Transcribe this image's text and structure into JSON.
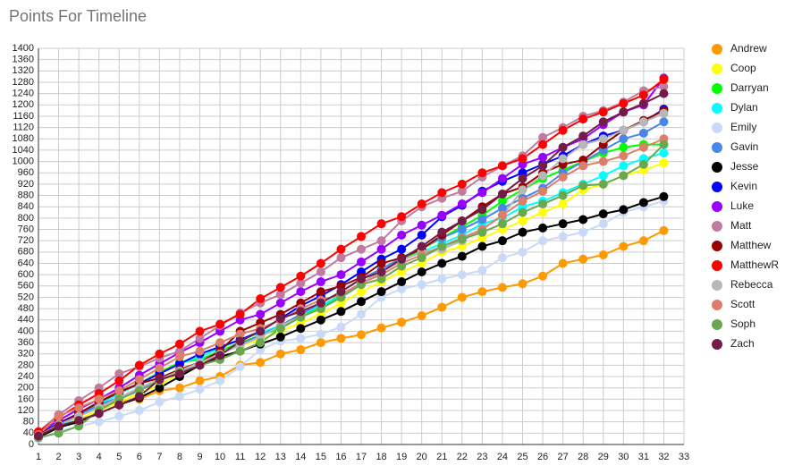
{
  "chart_data": {
    "type": "line",
    "title": "Points For Timeline",
    "x": [
      1,
      2,
      3,
      4,
      5,
      6,
      7,
      8,
      9,
      10,
      11,
      12,
      13,
      14,
      15,
      16,
      17,
      18,
      19,
      20,
      21,
      22,
      23,
      24,
      25,
      26,
      27,
      28,
      29,
      30,
      31,
      32
    ],
    "xlim": [
      1,
      33
    ],
    "xticks": [
      1,
      2,
      3,
      4,
      5,
      6,
      7,
      8,
      9,
      10,
      11,
      12,
      13,
      14,
      15,
      16,
      17,
      18,
      19,
      20,
      21,
      22,
      23,
      24,
      25,
      26,
      27,
      28,
      29,
      30,
      31,
      32,
      33
    ],
    "ylim": [
      0,
      1400
    ],
    "yticks": [
      0,
      40,
      80,
      120,
      160,
      200,
      240,
      280,
      320,
      360,
      400,
      440,
      480,
      520,
      560,
      600,
      640,
      680,
      720,
      760,
      800,
      840,
      880,
      920,
      960,
      1000,
      1040,
      1080,
      1120,
      1160,
      1200,
      1240,
      1280,
      1320,
      1360,
      1400
    ],
    "grid": true,
    "legend": "right",
    "series": [
      {
        "name": "Andrew",
        "color": "#ff9900",
        "values": [
          25,
          70,
          100,
          130,
          150,
          160,
          190,
          200,
          225,
          240,
          280,
          290,
          320,
          335,
          360,
          375,
          388,
          412,
          432,
          455,
          485,
          520,
          540,
          555,
          568,
          595,
          640,
          655,
          670,
          700,
          720,
          756
        ]
      },
      {
        "name": "Coop",
        "color": "#ffff00",
        "values": [
          30,
          60,
          90,
          120,
          150,
          180,
          210,
          250,
          280,
          320,
          350,
          370,
          400,
          430,
          460,
          500,
          540,
          575,
          610,
          640,
          680,
          700,
          730,
          760,
          790,
          820,
          850,
          900,
          920,
          950,
          970,
          995
        ]
      },
      {
        "name": "Darryan",
        "color": "#00ff00",
        "values": [
          35,
          70,
          110,
          145,
          180,
          215,
          255,
          290,
          300,
          330,
          360,
          385,
          410,
          450,
          490,
          520,
          570,
          610,
          650,
          690,
          730,
          770,
          810,
          860,
          900,
          940,
          970,
          1000,
          1030,
          1050,
          1060,
          1060
        ]
      },
      {
        "name": "Dylan",
        "color": "#00ffff",
        "values": [
          30,
          65,
          100,
          140,
          180,
          215,
          250,
          285,
          310,
          340,
          370,
          395,
          420,
          460,
          490,
          530,
          570,
          610,
          650,
          680,
          710,
          740,
          780,
          800,
          840,
          860,
          890,
          920,
          950,
          985,
          1010,
          1030
        ]
      },
      {
        "name": "Emily",
        "color": "#c9daf8",
        "values": [
          20,
          45,
          65,
          80,
          100,
          120,
          150,
          170,
          195,
          225,
          275,
          335,
          365,
          375,
          390,
          415,
          460,
          520,
          550,
          565,
          585,
          600,
          615,
          660,
          680,
          720,
          735,
          750,
          780,
          820,
          840,
          860
        ]
      },
      {
        "name": "Gavin",
        "color": "#4a86e8",
        "values": [
          35,
          70,
          105,
          140,
          165,
          195,
          230,
          260,
          290,
          320,
          355,
          385,
          420,
          460,
          500,
          540,
          585,
          620,
          660,
          695,
          730,
          760,
          795,
          835,
          870,
          905,
          960,
          1000,
          1040,
          1080,
          1100,
          1140
        ]
      },
      {
        "name": "Jesse",
        "color": "#000000",
        "values": [
          25,
          60,
          80,
          110,
          140,
          165,
          200,
          240,
          280,
          310,
          330,
          355,
          380,
          410,
          440,
          470,
          505,
          540,
          575,
          610,
          640,
          665,
          700,
          720,
          750,
          765,
          780,
          795,
          815,
          830,
          855,
          876
        ]
      },
      {
        "name": "Kevin",
        "color": "#0000ff",
        "values": [
          35,
          75,
          110,
          150,
          185,
          215,
          250,
          285,
          320,
          345,
          370,
          400,
          445,
          490,
          525,
          565,
          610,
          655,
          690,
          740,
          805,
          845,
          895,
          930,
          960,
          990,
          1020,
          1060,
          1090,
          1110,
          1140,
          1185
        ]
      },
      {
        "name": "Luke",
        "color": "#9900ff",
        "values": [
          40,
          85,
          125,
          160,
          200,
          245,
          285,
          325,
          360,
          400,
          440,
          460,
          500,
          540,
          575,
          600,
          645,
          690,
          740,
          775,
          810,
          850,
          890,
          940,
          990,
          1015,
          1050,
          1080,
          1130,
          1175,
          1200,
          1295
        ]
      },
      {
        "name": "Matt",
        "color": "#c27ba0",
        "values": [
          45,
          105,
          155,
          200,
          250,
          275,
          305,
          330,
          375,
          420,
          465,
          500,
          530,
          570,
          610,
          660,
          690,
          720,
          790,
          840,
          870,
          895,
          945,
          985,
          1020,
          1085,
          1120,
          1160,
          1180,
          1210,
          1250,
          1265
        ]
      },
      {
        "name": "Matthew",
        "color": "#990000",
        "values": [
          35,
          70,
          110,
          150,
          185,
          215,
          235,
          265,
          290,
          330,
          400,
          430,
          460,
          500,
          540,
          560,
          590,
          640,
          660,
          690,
          740,
          790,
          840,
          885,
          910,
          960,
          990,
          1005,
          1060,
          1110,
          1145,
          1180
        ]
      },
      {
        "name": "MatthewR",
        "color": "#ff0000",
        "values": [
          45,
          95,
          140,
          180,
          225,
          280,
          320,
          355,
          400,
          425,
          460,
          515,
          555,
          595,
          640,
          690,
          735,
          780,
          805,
          850,
          890,
          920,
          960,
          985,
          1010,
          1060,
          1110,
          1150,
          1175,
          1205,
          1235,
          1290
        ]
      },
      {
        "name": "Rebecca",
        "color": "#b7b7b7",
        "values": [
          30,
          70,
          100,
          130,
          165,
          200,
          230,
          260,
          290,
          320,
          350,
          380,
          420,
          450,
          480,
          520,
          570,
          610,
          650,
          680,
          690,
          720,
          760,
          810,
          900,
          950,
          1010,
          1060,
          1080,
          1110,
          1140,
          1170
        ]
      },
      {
        "name": "Scott",
        "color": "#dd7e6b",
        "values": [
          35,
          100,
          130,
          160,
          190,
          230,
          270,
          310,
          330,
          360,
          390,
          410,
          440,
          480,
          510,
          530,
          570,
          600,
          640,
          670,
          700,
          730,
          760,
          810,
          860,
          895,
          945,
          985,
          1000,
          1020,
          1050,
          1080
        ]
      },
      {
        "name": "Soph",
        "color": "#6aa84f",
        "values": [
          25,
          40,
          65,
          120,
          160,
          190,
          225,
          255,
          280,
          300,
          330,
          360,
          410,
          450,
          480,
          520,
          565,
          585,
          630,
          660,
          700,
          725,
          750,
          780,
          820,
          850,
          880,
          915,
          920,
          950,
          990,
          1060
        ]
      },
      {
        "name": "Zach",
        "color": "#741b47",
        "values": [
          30,
          65,
          85,
          110,
          140,
          170,
          230,
          250,
          280,
          315,
          365,
          400,
          445,
          470,
          500,
          540,
          585,
          610,
          655,
          700,
          750,
          790,
          830,
          885,
          940,
          985,
          1050,
          1090,
          1140,
          1175,
          1205,
          1240
        ]
      }
    ]
  }
}
